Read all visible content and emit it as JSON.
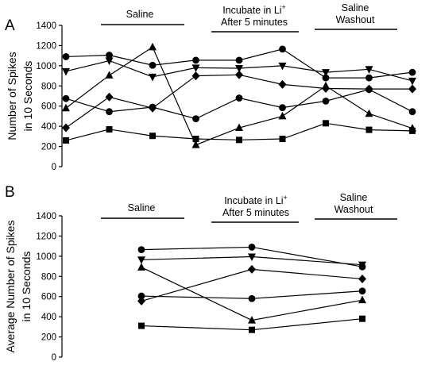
{
  "chart_data": [
    {
      "panel": "A",
      "type": "line",
      "ylabel": [
        "Number of Spikes",
        "in 10 Seconds"
      ],
      "ylim": [
        0,
        1400
      ],
      "yticks": [
        0,
        200,
        400,
        600,
        800,
        1000,
        1200,
        1400
      ],
      "grid": false,
      "legend": "none",
      "conditions": [
        {
          "lines": [
            "Saline"
          ]
        },
        {
          "lines": [
            "Incubate in Li",
            "After 5 minutes"
          ],
          "superscript": "+"
        },
        {
          "lines": [
            "Saline",
            "Washout"
          ]
        }
      ],
      "x": [
        1,
        2,
        3,
        4,
        5,
        6,
        7,
        8,
        9
      ],
      "series": [
        {
          "marker": "circle",
          "values": [
            1090,
            1105,
            1005,
            1055,
            1055,
            1165,
            880,
            880,
            935
          ]
        },
        {
          "marker": "triangle-down",
          "values": [
            945,
            1050,
            890,
            980,
            975,
            1000,
            935,
            965,
            850
          ]
        },
        {
          "marker": "triangle",
          "values": [
            580,
            905,
            1185,
            215,
            385,
            500,
            800,
            525,
            380
          ]
        },
        {
          "marker": "diamond",
          "values": [
            385,
            690,
            580,
            900,
            910,
            815,
            775,
            770,
            770
          ]
        },
        {
          "marker": "circle",
          "values": [
            675,
            545,
            590,
            475,
            680,
            585,
            650,
            765,
            545
          ]
        },
        {
          "marker": "square",
          "values": [
            260,
            370,
            305,
            275,
            265,
            275,
            430,
            365,
            355
          ]
        }
      ]
    },
    {
      "panel": "B",
      "type": "line",
      "ylabel": [
        "Average Number of Spikes",
        "in 10 Seconds"
      ],
      "ylim": [
        0,
        1400
      ],
      "yticks": [
        0,
        200,
        400,
        600,
        800,
        1000,
        1200,
        1400
      ],
      "grid": false,
      "legend": "none",
      "conditions": [
        {
          "lines": [
            "Saline"
          ]
        },
        {
          "lines": [
            "Incubate in Li",
            "After 5 minutes"
          ],
          "superscript": "+"
        },
        {
          "lines": [
            "Saline",
            "Washout"
          ]
        }
      ],
      "x": [
        1,
        2,
        3
      ],
      "series": [
        {
          "marker": "circle",
          "values": [
            1065,
            1090,
            895
          ]
        },
        {
          "marker": "triangle-down",
          "values": [
            965,
            995,
            915
          ]
        },
        {
          "marker": "triangle",
          "values": [
            890,
            365,
            565
          ]
        },
        {
          "marker": "diamond",
          "values": [
            555,
            870,
            775
          ]
        },
        {
          "marker": "circle",
          "values": [
            605,
            580,
            655
          ]
        },
        {
          "marker": "square",
          "values": [
            310,
            270,
            380
          ]
        }
      ]
    }
  ]
}
